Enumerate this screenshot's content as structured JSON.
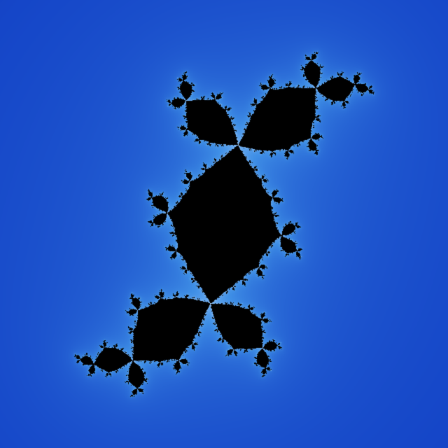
{
  "image": {
    "subject": "fractal-spiral",
    "palette": {
      "background": "#010a78",
      "outer_blue": "#1546c8",
      "mid_blue": "#3f8fe6",
      "light_blue": "#a7d3ff",
      "near_white": "#fbfeff",
      "gold": "#f5b23a",
      "orange": "#d67400",
      "core": "#000000"
    }
  }
}
